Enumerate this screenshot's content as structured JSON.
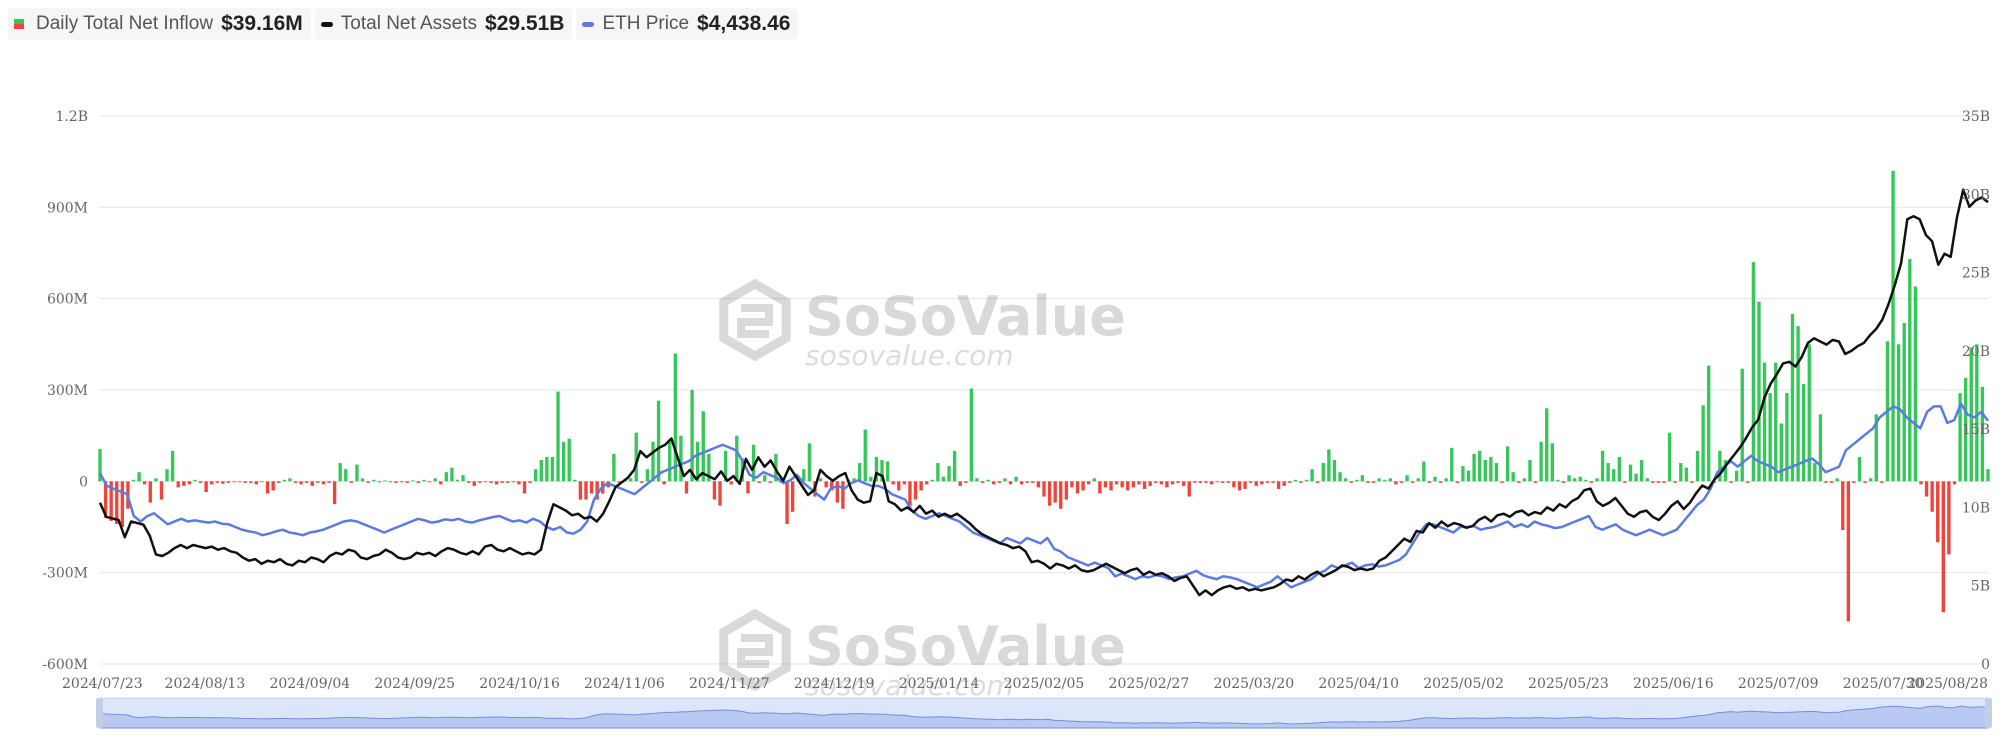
{
  "legend": [
    {
      "name": "Daily Total Net Inflow",
      "value": "$39.16M",
      "kind": "bar",
      "color_pos": "#35c759",
      "color_neg": "#f0433a"
    },
    {
      "name": "Total Net Assets",
      "value": "$29.51B",
      "kind": "line",
      "color": "#111111"
    },
    {
      "name": "ETH Price",
      "value": "$4,438.46",
      "kind": "line",
      "color": "#5b7be3"
    }
  ],
  "watermark": {
    "brand": "SoSoValue",
    "site": "sosovalue.com"
  },
  "chart_data": {
    "type": "bar",
    "title": "",
    "xlabel": "",
    "ylabel": "",
    "x_ticks": [
      "2024/07/23",
      "2024/08/13",
      "2024/09/04",
      "2024/09/25",
      "2024/10/16",
      "2024/11/06",
      "2024/11/27",
      "2024/12/19",
      "2025/01/14",
      "2025/02/05",
      "2025/02/27",
      "2025/03/20",
      "2025/04/10",
      "2025/05/02",
      "2025/05/23",
      "2025/06/16",
      "2025/07/09",
      "2025/07/30",
      "2025/08/28"
    ],
    "y_left_ticks": [
      "-600M",
      "-300M",
      "0",
      "300M",
      "600M",
      "900M",
      "1.2B"
    ],
    "y_right_ticks": [
      "0",
      "5B",
      "10B",
      "15B",
      "20B",
      "25B",
      "30B",
      "35B"
    ],
    "y_left_range": [
      -600,
      1200
    ],
    "y_right_range": [
      0,
      35
    ],
    "grid": true,
    "legend_position": "top-left",
    "series": [
      {
        "name": "Daily Total Net Inflow",
        "type": "bar",
        "unit": "M USD",
        "axis": "left",
        "values": [
          106,
          -120,
          -130,
          -140,
          -150,
          -90,
          5,
          30,
          -10,
          -70,
          10,
          -60,
          40,
          100,
          -20,
          -15,
          -10,
          5,
          -5,
          -35,
          -10,
          -5,
          -8,
          -5,
          -3,
          -2,
          -5,
          -5,
          -10,
          -2,
          -40,
          -30,
          -5,
          5,
          10,
          -5,
          -10,
          -5,
          -15,
          -5,
          -10,
          -5,
          -75,
          60,
          40,
          -5,
          55,
          10,
          -5,
          5,
          -3,
          3,
          -3,
          -5,
          -3,
          -5,
          3,
          -5,
          5,
          -3,
          10,
          -10,
          30,
          45,
          5,
          20,
          -5,
          -15,
          -5,
          -3,
          -5,
          -10,
          -5,
          -5,
          -3,
          -10,
          -40,
          -5,
          40,
          70,
          80,
          80,
          295,
          130,
          140,
          5,
          -60,
          -60,
          -40,
          -60,
          -40,
          -20,
          90,
          -5,
          5,
          10,
          160,
          -5,
          40,
          130,
          265,
          -10,
          130,
          420,
          150,
          -40,
          300,
          130,
          230,
          90,
          -60,
          -80,
          100,
          -10,
          150,
          75,
          -40,
          120,
          -5,
          20,
          -5,
          90,
          -5,
          -140,
          -100,
          10,
          40,
          125,
          -50,
          10,
          -20,
          -30,
          -70,
          -90,
          5,
          10,
          60,
          170,
          15,
          80,
          70,
          65,
          -10,
          -30,
          -10,
          -80,
          -60,
          -30,
          -10,
          5,
          60,
          15,
          50,
          100,
          -15,
          -5,
          305,
          10,
          -5,
          5,
          -10,
          -5,
          10,
          -10,
          15,
          -10,
          -5,
          -5,
          -20,
          -50,
          -80,
          -70,
          -90,
          -60,
          -20,
          -40,
          -30,
          -10,
          10,
          -40,
          -20,
          -30,
          -10,
          -20,
          -30,
          -20,
          -10,
          -25,
          -15,
          -5,
          -10,
          -20,
          -10,
          -5,
          -15,
          -50,
          -5,
          -5,
          -5,
          -10,
          -3,
          -5,
          -5,
          -20,
          -30,
          -25,
          -5,
          -15,
          -10,
          -5,
          -5,
          -25,
          -15,
          -5,
          5,
          -5,
          5,
          40,
          -5,
          60,
          105,
          70,
          30,
          10,
          -5,
          5,
          20,
          -5,
          -5,
          10,
          5,
          10,
          -10,
          -5,
          20,
          -5,
          10,
          65,
          -5,
          15,
          -5,
          10,
          110,
          -5,
          50,
          35,
          90,
          100,
          70,
          80,
          60,
          -5,
          115,
          30,
          -5,
          10,
          70,
          -5,
          130,
          240,
          125,
          5,
          -5,
          20,
          10,
          15,
          5,
          -5,
          10,
          100,
          60,
          40,
          80,
          -5,
          55,
          25,
          70,
          10,
          -5,
          -5,
          -5,
          160,
          -5,
          60,
          45,
          -5,
          100,
          250,
          380,
          -5,
          100,
          70,
          -5,
          35,
          370,
          -5,
          720,
          590,
          390,
          290,
          390,
          190,
          290,
          550,
          510,
          320,
          450,
          60,
          220,
          -5,
          -5,
          10,
          -160,
          -460,
          -5,
          80,
          -5,
          10,
          220,
          -5,
          460,
          1020,
          450,
          520,
          730,
          640,
          -10,
          -50,
          -100,
          -200,
          -430,
          -240,
          -10,
          290,
          340,
          440,
          450,
          310,
          40
        ]
      },
      {
        "name": "Total Net Assets",
        "type": "line",
        "unit": "B USD",
        "axis": "right",
        "values": [
          10.3,
          9.4,
          9.3,
          9.2,
          8.1,
          9.1,
          9.0,
          8.9,
          8.2,
          7.0,
          6.9,
          7.1,
          7.4,
          7.6,
          7.4,
          7.6,
          7.5,
          7.4,
          7.5,
          7.3,
          7.4,
          7.2,
          7.1,
          6.8,
          6.6,
          6.7,
          6.4,
          6.6,
          6.5,
          6.7,
          6.4,
          6.3,
          6.6,
          6.5,
          6.8,
          6.7,
          6.5,
          6.9,
          7.1,
          7.0,
          7.3,
          7.2,
          6.8,
          6.7,
          6.9,
          7.0,
          7.3,
          7.1,
          6.8,
          6.7,
          6.8,
          7.1,
          7.0,
          7.1,
          6.9,
          7.2,
          7.4,
          7.3,
          7.1,
          7.0,
          7.2,
          7.0,
          7.5,
          7.6,
          7.3,
          7.2,
          7.4,
          7.2,
          7.0,
          7.1,
          7.0,
          7.3,
          9.0,
          10.2,
          10.0,
          9.8,
          9.5,
          9.6,
          9.3,
          9.4,
          9.1,
          9.6,
          10.4,
          11.3,
          11.6,
          11.9,
          12.4,
          13.6,
          13.2,
          13.5,
          13.8,
          14.0,
          14.4,
          13.2,
          12.0,
          12.4,
          11.8,
          12.2,
          12.0,
          11.8,
          12.3,
          11.7,
          12.0,
          11.5,
          13.1,
          12.4,
          13.2,
          12.6,
          13.0,
          12.3,
          11.7,
          12.6,
          12.0,
          11.4,
          10.8,
          11.1,
          12.4,
          12.0,
          11.7,
          12.0,
          12.2,
          11.1,
          10.5,
          10.3,
          10.4,
          12.2,
          12.0,
          10.4,
          10.2,
          9.8,
          10.0,
          9.7,
          10.1,
          9.6,
          9.8,
          9.4,
          9.6,
          9.4,
          9.6,
          9.3,
          9.0,
          8.6,
          8.3,
          8.1,
          7.9,
          7.7,
          7.6,
          7.4,
          7.5,
          7.2,
          6.5,
          6.6,
          6.4,
          6.1,
          6.4,
          6.3,
          6.1,
          6.3,
          6.0,
          5.9,
          6.0,
          6.2,
          6.4,
          6.2,
          6.0,
          5.8,
          6.0,
          6.1,
          5.7,
          5.9,
          5.7,
          5.8,
          5.6,
          5.3,
          5.5,
          5.6,
          5.0,
          4.4,
          4.7,
          4.4,
          4.7,
          4.9,
          5.0,
          4.8,
          4.9,
          4.7,
          4.8,
          4.7,
          4.8,
          4.9,
          5.1,
          5.4,
          5.3,
          5.6,
          5.4,
          5.7,
          5.9,
          5.6,
          5.8,
          6.0,
          6.3,
          6.2,
          6.0,
          6.1,
          6.0,
          6.1,
          6.6,
          6.8,
          7.2,
          7.6,
          8.0,
          7.8,
          8.5,
          8.4,
          9.0,
          8.7,
          9.1,
          8.8,
          9.0,
          8.9,
          8.7,
          8.8,
          9.2,
          9.4,
          9.1,
          9.5,
          9.6,
          9.4,
          9.7,
          9.8,
          9.5,
          9.7,
          9.6,
          10.0,
          9.8,
          10.2,
          10.0,
          10.4,
          10.6,
          11.1,
          11.2,
          10.4,
          10.1,
          10.3,
          10.6,
          10.1,
          9.6,
          9.4,
          9.7,
          9.8,
          9.4,
          9.2,
          9.6,
          10.1,
          10.4,
          9.9,
          10.3,
          10.9,
          11.4,
          11.2,
          11.8,
          12.2,
          12.8,
          13.3,
          13.8,
          14.4,
          15.1,
          15.6,
          17.0,
          17.9,
          18.5,
          19.2,
          19.3,
          19.0,
          19.6,
          20.5,
          20.8,
          20.6,
          20.4,
          20.7,
          20.6,
          19.8,
          20.0,
          20.3,
          20.5,
          21.0,
          21.4,
          22.0,
          23.0,
          24.2,
          25.6,
          28.4,
          28.6,
          28.4,
          27.4,
          27.0,
          25.5,
          26.2,
          26.0,
          28.5,
          30.3,
          29.2,
          29.6,
          29.8,
          29.5
        ]
      },
      {
        "name": "ETH Price",
        "type": "line",
        "unit": "USD",
        "axis": "right",
        "values": [
          3480,
          3250,
          3200,
          3150,
          3100,
          2700,
          2600,
          2700,
          2750,
          2650,
          2550,
          2600,
          2650,
          2600,
          2620,
          2600,
          2580,
          2600,
          2560,
          2550,
          2500,
          2450,
          2420,
          2400,
          2350,
          2380,
          2420,
          2450,
          2400,
          2380,
          2350,
          2400,
          2420,
          2450,
          2500,
          2550,
          2600,
          2620,
          2600,
          2550,
          2500,
          2450,
          2400,
          2450,
          2500,
          2550,
          2600,
          2650,
          2620,
          2580,
          2600,
          2640,
          2620,
          2650,
          2600,
          2580,
          2620,
          2650,
          2680,
          2700,
          2650,
          2600,
          2620,
          2580,
          2650,
          2600,
          2500,
          2450,
          2500,
          2400,
          2380,
          2450,
          2600,
          3000,
          3200,
          3300,
          3250,
          3200,
          3150,
          3100,
          3200,
          3300,
          3400,
          3500,
          3550,
          3600,
          3650,
          3700,
          3800,
          3850,
          3900,
          3950,
          4000,
          3950,
          3900,
          3700,
          3450,
          3400,
          3500,
          3450,
          3400,
          3300,
          3350,
          3450,
          3300,
          3200,
          3100,
          3000,
          3200,
          3250,
          3200,
          3300,
          3350,
          3300,
          3250,
          3250,
          3200,
          3100,
          3050,
          3000,
          2800,
          2700,
          2650,
          2700,
          2750,
          2700,
          2650,
          2600,
          2500,
          2400,
          2350,
          2300,
          2250,
          2200,
          2300,
          2250,
          2200,
          2300,
          2250,
          2200,
          2300,
          2100,
          2050,
          1950,
          1900,
          1850,
          1800,
          1850,
          1800,
          1750,
          1600,
          1650,
          1600,
          1550,
          1600,
          1580,
          1620,
          1600,
          1550,
          1580,
          1600,
          1650,
          1700,
          1620,
          1580,
          1550,
          1600,
          1580,
          1550,
          1500,
          1450,
          1400,
          1450,
          1500,
          1600,
          1500,
          1400,
          1450,
          1500,
          1550,
          1650,
          1700,
          1800,
          1750,
          1800,
          1850,
          1750,
          1800,
          1820,
          1780,
          1800,
          1850,
          1900,
          2000,
          2200,
          2400,
          2550,
          2550,
          2500,
          2450,
          2400,
          2500,
          2500,
          2520,
          2450,
          2480,
          2500,
          2550,
          2600,
          2500,
          2550,
          2500,
          2600,
          2550,
          2520,
          2480,
          2500,
          2550,
          2600,
          2650,
          2700,
          2500,
          2450,
          2500,
          2550,
          2450,
          2400,
          2350,
          2400,
          2450,
          2400,
          2350,
          2400,
          2450,
          2600,
          2750,
          2900,
          3000,
          3200,
          3500,
          3600,
          3700,
          3600,
          3700,
          3800,
          3700,
          3650,
          3600,
          3500,
          3550,
          3600,
          3650,
          3700,
          3750,
          3650,
          3500,
          3550,
          3600,
          3900,
          4000,
          4100,
          4200,
          4300,
          4500,
          4600,
          4700,
          4650,
          4500,
          4400,
          4300,
          4600,
          4700,
          4700,
          4400,
          4450,
          4750,
          4550,
          4500,
          4600,
          4438
        ]
      }
    ]
  }
}
